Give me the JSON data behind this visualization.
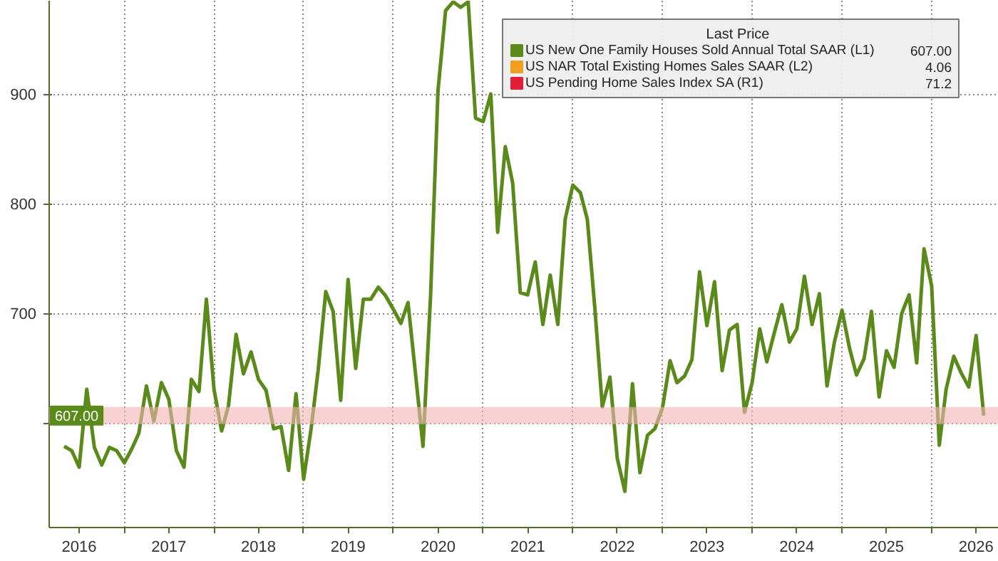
{
  "chart_data": {
    "type": "line",
    "legend_title": "Last Price",
    "x": [
      "2016-05",
      "2016-06",
      "2016-07",
      "2016-08",
      "2016-09",
      "2016-10",
      "2016-11",
      "2016-12",
      "2017-01",
      "2017-02",
      "2017-03",
      "2017-04",
      "2017-05",
      "2017-06",
      "2017-07",
      "2017-08",
      "2017-09",
      "2017-10",
      "2017-11",
      "2017-12",
      "2018-01",
      "2018-02",
      "2018-03",
      "2018-04",
      "2018-05",
      "2018-06",
      "2018-07",
      "2018-08",
      "2018-09",
      "2018-10",
      "2018-11",
      "2018-12",
      "2019-01",
      "2019-02",
      "2019-03",
      "2019-04",
      "2019-05",
      "2019-06",
      "2019-07",
      "2019-08",
      "2019-09",
      "2019-10",
      "2019-11",
      "2019-12",
      "2020-01",
      "2020-02",
      "2020-03",
      "2020-04",
      "2020-05",
      "2020-06",
      "2020-07",
      "2020-08",
      "2020-09",
      "2020-10",
      "2020-11",
      "2020-12",
      "2021-01",
      "2021-02",
      "2021-03",
      "2021-04",
      "2021-05",
      "2021-06",
      "2021-07",
      "2021-08",
      "2021-09",
      "2021-10",
      "2021-11",
      "2021-12",
      "2022-01",
      "2022-02",
      "2022-03",
      "2022-04",
      "2022-05",
      "2022-06",
      "2022-07",
      "2022-08",
      "2022-09",
      "2022-10",
      "2022-11",
      "2022-12",
      "2023-01",
      "2023-02",
      "2023-03",
      "2023-04",
      "2023-05",
      "2023-06",
      "2023-07",
      "2023-08",
      "2023-09",
      "2023-10",
      "2023-11",
      "2023-12",
      "2024-01",
      "2024-02",
      "2024-03",
      "2024-04",
      "2024-05",
      "2024-06",
      "2024-07",
      "2024-08",
      "2024-09",
      "2024-10",
      "2024-11",
      "2024-12",
      "2025-01",
      "2025-02",
      "2025-03",
      "2025-04",
      "2025-05",
      "2025-06",
      "2025-07",
      "2025-08",
      "2025-09",
      "2025-10",
      "2025-11",
      "2025-12",
      "2026-01",
      "2026-02",
      "2026-03",
      "2026-04",
      "2026-05",
      "2026-06",
      "2026-07",
      "2026-08"
    ],
    "series": [
      {
        "name": "US New One Family Houses Sold Annual Total SAAR  (L1)",
        "color": "#5a8a1a",
        "values": [
          579,
          575,
          560,
          631,
          578,
          562,
          578,
          575,
          564,
          577,
          591,
          634,
          602,
          637,
          622,
          575,
          560,
          640,
          629,
          713,
          631,
          593,
          616,
          681,
          645,
          665,
          640,
          630,
          595,
          597,
          557,
          627,
          549,
          596,
          648,
          720,
          702,
          621,
          731,
          650,
          713,
          713,
          724,
          716,
          704,
          691,
          710,
          644,
          579,
          717,
          903,
          976,
          984,
          979,
          984,
          878,
          875,
          900,
          774,
          852,
          819,
          719,
          717,
          747,
          690,
          735,
          690,
          786,
          817,
          810,
          786,
          704,
          615,
          642,
          568,
          538,
          636,
          555,
          589,
          595,
          614,
          657,
          637,
          643,
          658,
          738,
          689,
          729,
          648,
          685,
          690,
          610,
          637,
          686,
          656,
          683,
          708,
          674,
          686,
          734,
          690,
          718,
          634,
          674,
          703,
          668,
          644,
          659,
          702,
          624,
          666,
          651,
          700,
          717,
          655,
          759,
          725,
          580,
          631,
          661,
          646,
          633,
          680,
          607
        ]
      },
      {
        "name": "US NAR Total Existing Homes Sales SAAR  (L2)",
        "color": "#f0a020",
        "values": [
          null,
          null,
          null,
          null,
          null,
          null,
          null,
          null,
          null,
          null,
          null,
          null,
          null,
          null,
          null,
          null,
          null,
          null,
          null,
          null,
          null,
          null,
          null,
          null,
          null,
          null,
          null,
          null,
          null,
          null,
          null,
          null,
          null,
          null,
          null,
          null,
          null,
          null,
          null,
          null,
          null,
          null,
          null,
          null,
          null,
          null,
          null,
          null,
          null,
          null,
          null,
          null,
          null,
          null,
          null,
          null,
          null,
          null,
          null,
          null,
          null,
          null,
          null,
          null,
          null,
          null,
          null,
          null,
          null,
          null,
          null,
          null,
          null,
          null,
          null,
          null,
          null,
          null,
          null,
          null,
          null,
          null,
          null,
          null,
          null,
          null,
          null,
          null,
          null,
          null,
          null,
          null,
          null,
          null,
          null,
          null,
          null,
          null,
          null,
          null,
          null,
          null,
          null,
          null,
          null,
          null,
          null,
          null,
          null,
          null,
          null,
          null,
          null,
          null,
          null,
          null,
          null,
          null,
          null,
          null,
          null,
          null,
          null,
          null
        ]
      },
      {
        "name": "US Pending Home Sales Index SA  (R1)",
        "color": "#e0203a",
        "values": [
          null,
          null,
          null,
          null,
          null,
          null,
          null,
          null,
          null,
          null,
          null,
          null,
          null,
          null,
          null,
          null,
          null,
          null,
          null,
          null,
          null,
          null,
          null,
          null,
          null,
          null,
          null,
          null,
          null,
          null,
          null,
          null,
          null,
          null,
          null,
          null,
          null,
          null,
          null,
          null,
          null,
          null,
          null,
          null,
          null,
          null,
          null,
          null,
          null,
          null,
          null,
          null,
          null,
          null,
          null,
          null,
          null,
          null,
          null,
          null,
          null,
          null,
          null,
          null,
          null,
          null,
          null,
          null,
          null,
          null,
          null,
          null,
          null,
          null,
          null,
          null,
          null,
          null,
          null,
          null,
          null,
          null,
          null,
          null,
          null,
          null,
          null,
          null,
          null,
          null,
          null,
          null,
          null,
          null,
          null,
          null,
          null,
          null,
          null,
          null,
          null,
          null,
          null,
          null,
          null,
          null,
          null,
          null,
          null,
          null,
          null,
          null,
          null,
          null,
          null,
          null,
          null,
          null,
          null,
          null,
          null,
          null,
          null,
          null
        ]
      }
    ],
    "annotations": [
      "607.00",
      "4.06",
      "71.2"
    ],
    "ref_lines": [
      {
        "axis": "y",
        "value": 607,
        "label": "607.00",
        "color": "#f4b4b4"
      }
    ],
    "xlim": [
      "2016-03",
      "2026-10"
    ],
    "xticks": [
      {
        "value": "2016-07",
        "label": "2016"
      },
      {
        "value": "2017-01",
        "label": null
      },
      {
        "value": "2017-07",
        "label": "2017"
      },
      {
        "value": "2018-01",
        "label": null
      },
      {
        "value": "2018-07",
        "label": "2018"
      },
      {
        "value": "2019-01",
        "label": null
      },
      {
        "value": "2019-07",
        "label": "2019"
      },
      {
        "value": "2020-01",
        "label": null
      },
      {
        "value": "2020-07",
        "label": "2020"
      },
      {
        "value": "2021-01",
        "label": null
      },
      {
        "value": "2021-07",
        "label": "2021"
      },
      {
        "value": "2022-01",
        "label": null
      },
      {
        "value": "2022-07",
        "label": "2022"
      },
      {
        "value": "2023-01",
        "label": null
      },
      {
        "value": "2023-07",
        "label": "2023"
      },
      {
        "value": "2024-01",
        "label": null
      },
      {
        "value": "2024-07",
        "label": "2024"
      },
      {
        "value": "2025-01",
        "label": null
      },
      {
        "value": "2025-07",
        "label": "2025"
      },
      {
        "value": "2026-01",
        "label": null
      },
      {
        "value": "2026-07",
        "label": "2026"
      }
    ],
    "ylim": [
      505,
      985
    ],
    "yticks": [
      {
        "value": 600,
        "label": null
      },
      700,
      800,
      900
    ],
    "grid": true,
    "legend": "top right",
    "marker": "none",
    "line_style": "solid"
  }
}
